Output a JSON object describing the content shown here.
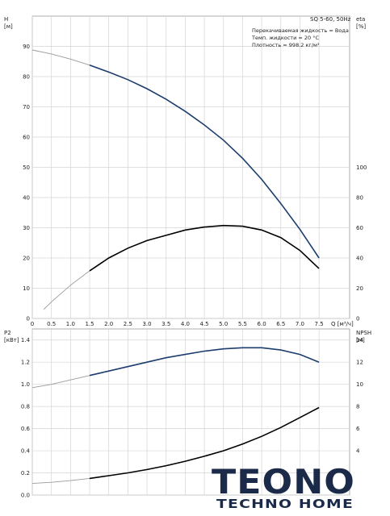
{
  "chart_data": [
    {
      "type": "line",
      "title": "SQ 5-60, 50Hz",
      "info_lines": [
        "Перекачиваемая жидкость = Вода",
        "Темп. жидкости = 20 °C",
        "Плотность = 998.2 кг/м³"
      ],
      "xlabel": "Q [м³/ч]",
      "xlim": [
        0,
        8.3
      ],
      "x_ticks": [
        0,
        0.5,
        1.0,
        1.5,
        2.0,
        2.5,
        3.0,
        3.5,
        4.0,
        4.5,
        5.0,
        5.5,
        6.0,
        6.5,
        7.0,
        7.5
      ],
      "x_tick_labels": [
        "0",
        "0.5",
        "1.0",
        "1.5",
        "2.0",
        "2.5",
        "3.0",
        "3.5",
        "4.0",
        "4.5",
        "5.0",
        "5.5",
        "6.0",
        "6.5",
        "7.0",
        "7.5"
      ],
      "y_left": {
        "label_top": "H",
        "label_unit": "[м]",
        "lim": [
          0,
          100
        ],
        "ticks": [
          0,
          10,
          20,
          30,
          40,
          50,
          60,
          70,
          80,
          90
        ],
        "tick_labels": [
          "0",
          "10",
          "20",
          "30",
          "40",
          "50",
          "60",
          "70",
          "80",
          "90"
        ]
      },
      "y_right": {
        "label_top": "eta",
        "label_unit": "[%]",
        "lim": [
          0,
          200
        ],
        "ticks": [
          0,
          20,
          40,
          60,
          80,
          100
        ],
        "tick_labels": [
          "0",
          "20",
          "40",
          "60",
          "80",
          "100"
        ]
      },
      "grid": true,
      "series": [
        {
          "axis": "left",
          "color": "#1c3d6e",
          "x": [
            0,
            0.5,
            1.0,
            1.5,
            2.0,
            2.5,
            3.0,
            3.5,
            4.0,
            4.5,
            5.0,
            5.5,
            6.0,
            6.5,
            7.0,
            7.5
          ],
          "y": [
            88.8,
            87.5,
            85.8,
            83.8,
            81.5,
            79.0,
            76.0,
            72.5,
            68.5,
            64.0,
            59.0,
            53.0,
            46.0,
            38.0,
            29.5,
            20.0
          ],
          "faint_before_x": 1.5
        },
        {
          "axis": "right",
          "color": "#000000",
          "x": [
            0.3,
            0.5,
            1.0,
            1.5,
            2.0,
            2.5,
            3.0,
            3.5,
            4.0,
            4.5,
            5.0,
            5.5,
            6.0,
            6.5,
            7.0,
            7.5
          ],
          "y": [
            6,
            11,
            22,
            31.5,
            40,
            46.5,
            51.5,
            55,
            58.5,
            60.5,
            61.5,
            61,
            58.5,
            53.5,
            45,
            33
          ],
          "faint_before_x": 1.5
        }
      ]
    },
    {
      "type": "line",
      "xlim": [
        0,
        8.3
      ],
      "x_ticks": [
        0,
        0.5,
        1.0,
        1.5,
        2.0,
        2.5,
        3.0,
        3.5,
        4.0,
        4.5,
        5.0,
        5.5,
        6.0,
        6.5,
        7.0,
        7.5
      ],
      "y_left": {
        "label_top": "P2",
        "label_unit": "[кВт]",
        "lim": [
          0,
          1.5
        ],
        "ticks": [
          0,
          0.2,
          0.4,
          0.6,
          0.8,
          1.0,
          1.2,
          1.4
        ],
        "tick_labels": [
          "0.0",
          "0.2",
          "0.4",
          "0.6",
          "0.8",
          "1.0",
          "1.2",
          "1.4"
        ]
      },
      "y_right": {
        "label_top": "NPSH",
        "label_unit": "[м]",
        "lim": [
          0,
          15
        ],
        "ticks": [
          4,
          6,
          8,
          10,
          12,
          14
        ],
        "tick_labels": [
          "4",
          "6",
          "8",
          "10",
          "12",
          "14"
        ]
      },
      "grid": true,
      "series": [
        {
          "axis": "left",
          "color": "#1c3d6e",
          "x": [
            0,
            0.5,
            1.0,
            1.5,
            2.0,
            2.5,
            3.0,
            3.5,
            4.0,
            4.5,
            5.0,
            5.5,
            6.0,
            6.5,
            7.0,
            7.5
          ],
          "y": [
            0.97,
            1.0,
            1.04,
            1.08,
            1.12,
            1.16,
            1.2,
            1.24,
            1.27,
            1.3,
            1.32,
            1.33,
            1.33,
            1.31,
            1.27,
            1.2
          ],
          "faint_before_x": 1.5
        },
        {
          "axis": "right",
          "color": "#000000",
          "x": [
            0,
            0.5,
            1.0,
            1.5,
            2.0,
            2.5,
            3.0,
            3.5,
            4.0,
            4.5,
            5.0,
            5.5,
            6.0,
            6.5,
            7.0,
            7.5
          ],
          "y": [
            1.05,
            1.15,
            1.3,
            1.5,
            1.75,
            2.0,
            2.3,
            2.65,
            3.05,
            3.5,
            4.0,
            4.6,
            5.3,
            6.1,
            7.0,
            7.9
          ],
          "faint_before_x": 1.5
        }
      ]
    }
  ],
  "logo": {
    "main_text": "TEONO",
    "sub_text": "TECHNO HOME"
  }
}
